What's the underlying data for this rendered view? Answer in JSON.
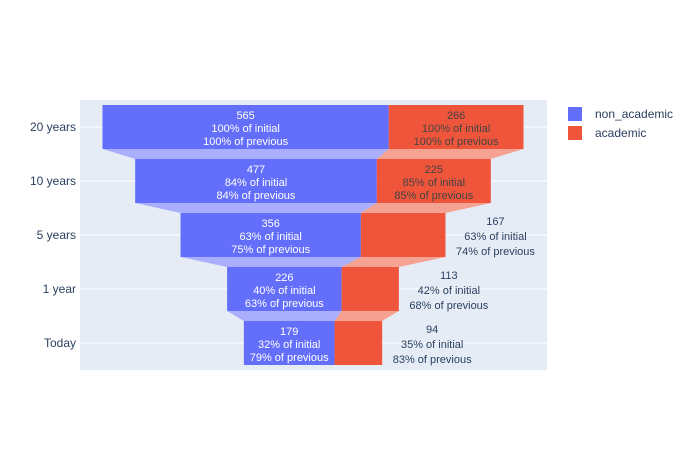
{
  "chart_data": {
    "type": "funnel",
    "categories": [
      "20 years",
      "10 years",
      "5 years",
      "1 year",
      "Today"
    ],
    "series": [
      {
        "name": "non_academic",
        "color": "#636efa",
        "values": [
          565,
          477,
          356,
          226,
          179
        ],
        "pct_initial": [
          "100% of initial",
          "84% of initial",
          "63% of initial",
          "40% of initial",
          "32% of initial"
        ],
        "pct_previous": [
          "100% of previous",
          "84% of previous",
          "75% of previous",
          "63% of previous",
          "79% of previous"
        ]
      },
      {
        "name": "academic",
        "color": "#ef553b",
        "values": [
          266,
          225,
          167,
          113,
          94
        ],
        "pct_initial": [
          "100% of initial",
          "85% of initial",
          "63% of initial",
          "42% of initial",
          "35% of initial"
        ],
        "pct_previous": [
          "100% of previous",
          "85% of previous",
          "74% of previous",
          "68% of previous",
          "83% of previous"
        ]
      }
    ],
    "legend_position": "top-right",
    "grid": true
  }
}
